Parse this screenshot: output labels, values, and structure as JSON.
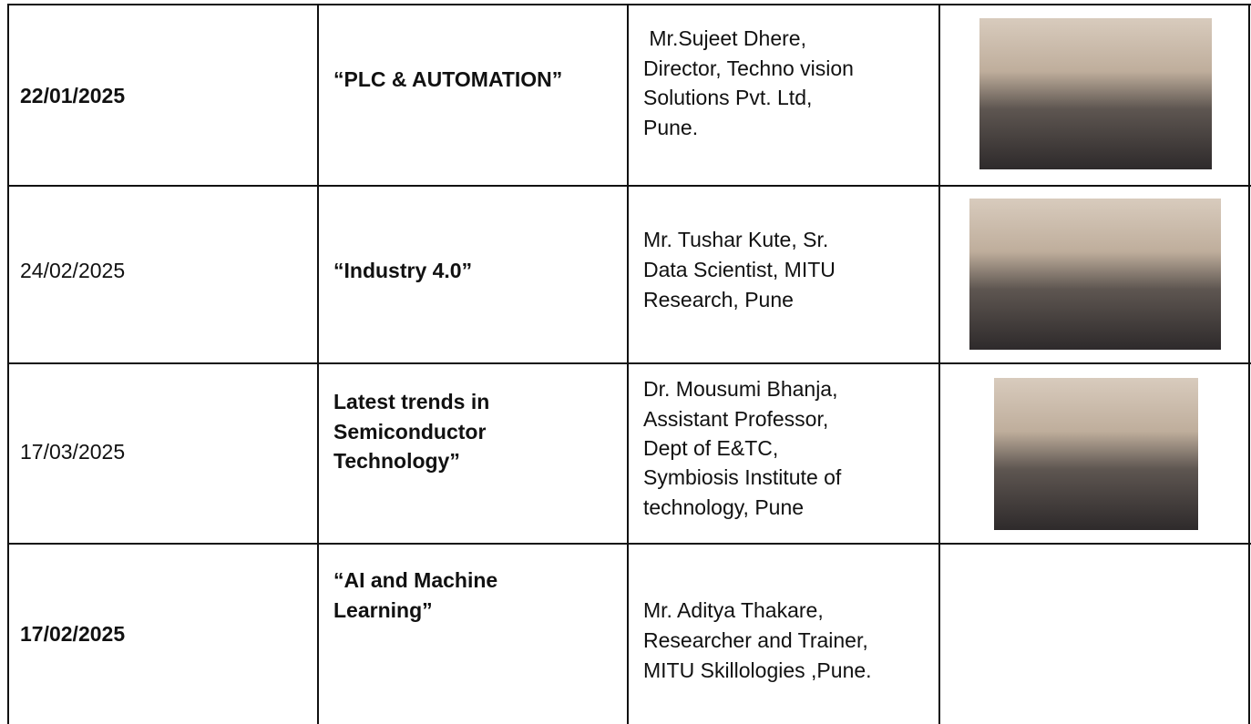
{
  "table": {
    "rows": [
      {
        "date": "22/01/2025",
        "topic": [
          "“PLC & AUTOMATION”"
        ],
        "speaker": [
          " Mr.Sujeet Dhere,",
          "Director, Techno vision",
          "Solutions Pvt. Ltd,",
          "Pune."
        ]
      },
      {
        "date": "24/02/2025",
        "topic": [
          "“Industry 4.0”"
        ],
        "speaker": [
          "Mr. Tushar Kute, Sr.",
          "Data Scientist, MITU",
          "Research, Pune"
        ]
      },
      {
        "date": "17/03/2025",
        "topic": [
          "Latest trends in",
          "Semiconductor",
          "Technology”"
        ],
        "speaker": [
          "Dr. Mousumi Bhanja,",
          "Assistant Professor,",
          "Dept of E&TC,",
          "Symbiosis Institute of",
          "technology, Pune"
        ]
      },
      {
        "date": "17/02/2025",
        "topic": [
          "“AI and Machine",
          "Learning”"
        ],
        "speaker": [
          "Mr. Aditya Thakare,",
          "Researcher and Trainer,",
          "MITU Skillologies ,Pune."
        ]
      }
    ]
  }
}
